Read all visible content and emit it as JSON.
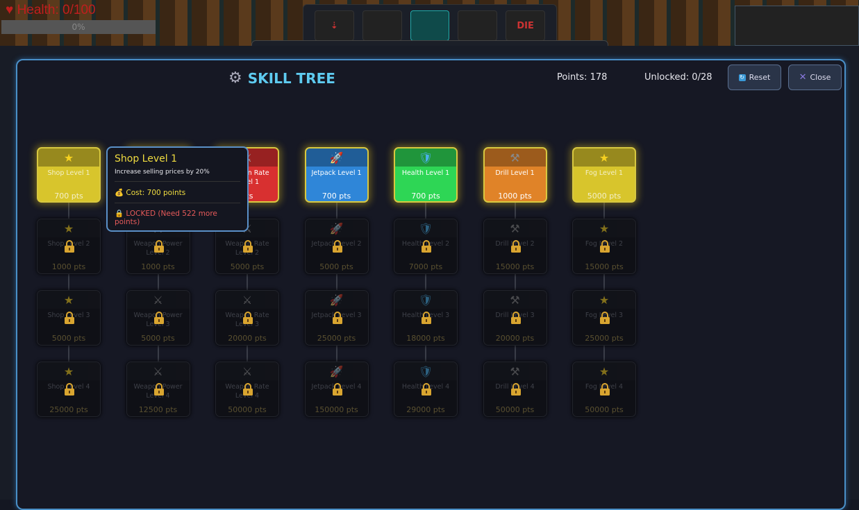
{
  "hud": {
    "health_label": "Health: 0/100",
    "health_progress": "0%",
    "toolbar_slots": [
      "drill",
      "pipe",
      "pipe-active",
      "bar",
      "DIE"
    ]
  },
  "skill_tree": {
    "title": "SKILL TREE",
    "points": "Points: 178",
    "unlocked": "Unlocked: 0/28",
    "reset_label": "Reset",
    "close_label": "Close"
  },
  "colors": {
    "shop": "#d8c52c",
    "weapon_power": "#d83030",
    "weapon_rate": "#d83030",
    "jetpack": "#2f86d8",
    "health": "#2ed655",
    "drill": "#e08328",
    "fog": "#d8c52c"
  },
  "columns": [
    {
      "key": "shop",
      "icon": "star-icon",
      "nodes": [
        {
          "name": "Shop Level 1",
          "cost": "700 pts"
        },
        {
          "name": "Shop Level 2",
          "cost": "1000 pts"
        },
        {
          "name": "Shop Level 3",
          "cost": "5000 pts"
        },
        {
          "name": "Shop Level 4",
          "cost": "25000 pts"
        }
      ]
    },
    {
      "key": "weapon_power",
      "icon": "swords-icon",
      "nodes": [
        {
          "name": "",
          "cost": ""
        },
        {
          "name": "Weapon Power Level 2",
          "cost": "1000 pts"
        },
        {
          "name": "Weapon Power Level 3",
          "cost": "5000 pts"
        },
        {
          "name": "Weapon Power Level 4",
          "cost": "12500 pts"
        }
      ]
    },
    {
      "key": "weapon_rate",
      "icon": "swords-icon",
      "nodes": [
        {
          "name": "Weapon Rate Level 1",
          "cost": "pts"
        },
        {
          "name": "Weapon Rate Level 2",
          "cost": "5000 pts"
        },
        {
          "name": "Weapon Rate Level 3",
          "cost": "20000 pts"
        },
        {
          "name": "Weapon Rate Level 4",
          "cost": "50000 pts"
        }
      ]
    },
    {
      "key": "jetpack",
      "icon": "rocket-icon",
      "nodes": [
        {
          "name": "Jetpack Level 1",
          "cost": "700 pts"
        },
        {
          "name": "Jetpack Level 2",
          "cost": "5000 pts"
        },
        {
          "name": "Jetpack Level 3",
          "cost": "25000 pts"
        },
        {
          "name": "Jetpack Level 4",
          "cost": "150000 pts"
        }
      ]
    },
    {
      "key": "health",
      "icon": "shield-icon",
      "nodes": [
        {
          "name": "Health Level 1",
          "cost": "700 pts"
        },
        {
          "name": "Health Level 2",
          "cost": "7000 pts"
        },
        {
          "name": "Health Level 3",
          "cost": "18000 pts"
        },
        {
          "name": "Health Level 4",
          "cost": "29000 pts"
        }
      ]
    },
    {
      "key": "drill",
      "icon": "hammers-icon",
      "nodes": [
        {
          "name": "Drill Level 1",
          "cost": "1000 pts"
        },
        {
          "name": "Drill Level 2",
          "cost": "15000 pts"
        },
        {
          "name": "Drill Level 3",
          "cost": "20000 pts"
        },
        {
          "name": "Drill Level 4",
          "cost": "50000 pts"
        }
      ]
    },
    {
      "key": "fog",
      "icon": "star-icon",
      "nodes": [
        {
          "name": "Fog Level 1",
          "cost": "5000 pts"
        },
        {
          "name": "Fog Level 2",
          "cost": "15000 pts"
        },
        {
          "name": "Fog Level 3",
          "cost": "25000 pts"
        },
        {
          "name": "Fog Level 4",
          "cost": "50000 pts"
        }
      ]
    }
  ],
  "tooltip": {
    "title": "Shop Level 1",
    "description": "Increase selling prices by 20%",
    "cost": "Cost: 700 points",
    "status": "LOCKED (Need 522 more points)"
  }
}
